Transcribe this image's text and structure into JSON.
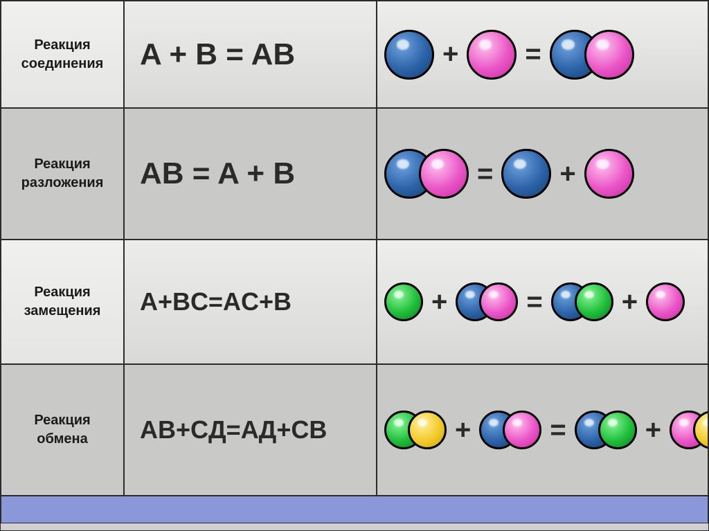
{
  "colors": {
    "blue": "radial-gradient(circle at 35% 30%, #6fa3e0 0%, #2c63a8 55%, #183e6e 100%)",
    "pink": "radial-gradient(circle at 35% 30%, #ffc3ef 0%, #ea55c6 55%, #c22aa0 100%)",
    "green": "radial-gradient(circle at 35% 30%, #8cf59a 0%, #1fbf3a 55%, #0e7d23 100%)",
    "yellow": "radial-gradient(circle at 35% 30%, #fff0a0 0%, #f2ca2a 55%, #caa20f 100%)"
  },
  "fontsizes": {
    "label": 20,
    "formula_large": 44,
    "formula_small": 36,
    "op": 40
  },
  "sphere_sizes": {
    "small": 56,
    "large": 72
  },
  "rows": [
    {
      "label": "Реакция\nсоединения",
      "formula": "A + B = AB",
      "formula_size": "formula_large",
      "diagram": [
        {
          "t": "sphere",
          "c": "blue",
          "s": "large"
        },
        {
          "t": "op",
          "v": "+"
        },
        {
          "t": "sphere",
          "c": "pink",
          "s": "large"
        },
        {
          "t": "op",
          "v": "="
        },
        {
          "t": "pair",
          "a": {
            "c": "blue",
            "s": "large"
          },
          "b": {
            "c": "pink",
            "s": "large"
          }
        }
      ]
    },
    {
      "label": "Реакция\nразложения",
      "formula": "AB = A + B",
      "formula_size": "formula_large",
      "diagram": [
        {
          "t": "pair",
          "a": {
            "c": "blue",
            "s": "large"
          },
          "b": {
            "c": "pink",
            "s": "large"
          }
        },
        {
          "t": "op",
          "v": "="
        },
        {
          "t": "sphere",
          "c": "blue",
          "s": "large"
        },
        {
          "t": "op",
          "v": "+"
        },
        {
          "t": "sphere",
          "c": "pink",
          "s": "large"
        }
      ]
    },
    {
      "label": "Реакция\nзамещения",
      "formula": "A+BC=AC+B",
      "formula_size": "formula_small",
      "diagram": [
        {
          "t": "sphere",
          "c": "green",
          "s": "small"
        },
        {
          "t": "op",
          "v": "+"
        },
        {
          "t": "pair",
          "a": {
            "c": "blue",
            "s": "small"
          },
          "b": {
            "c": "pink",
            "s": "small"
          }
        },
        {
          "t": "op",
          "v": "="
        },
        {
          "t": "pair",
          "a": {
            "c": "blue",
            "s": "small"
          },
          "b": {
            "c": "green",
            "s": "small"
          }
        },
        {
          "t": "op",
          "v": "+"
        },
        {
          "t": "sphere",
          "c": "pink",
          "s": "small"
        }
      ]
    },
    {
      "label": "Реакция\nобмена",
      "formula": "AB+CД=AД+CB",
      "formula_size": "formula_small",
      "diagram": [
        {
          "t": "pair",
          "a": {
            "c": "green",
            "s": "small"
          },
          "b": {
            "c": "yellow",
            "s": "small"
          }
        },
        {
          "t": "op",
          "v": "+"
        },
        {
          "t": "pair",
          "a": {
            "c": "blue",
            "s": "small"
          },
          "b": {
            "c": "pink",
            "s": "small"
          }
        },
        {
          "t": "op",
          "v": "="
        },
        {
          "t": "pair",
          "a": {
            "c": "blue",
            "s": "small"
          },
          "b": {
            "c": "green",
            "s": "small"
          }
        },
        {
          "t": "op",
          "v": "+"
        },
        {
          "t": "pair",
          "a": {
            "c": "pink",
            "s": "small"
          },
          "b": {
            "c": "yellow",
            "s": "small"
          }
        }
      ]
    }
  ]
}
